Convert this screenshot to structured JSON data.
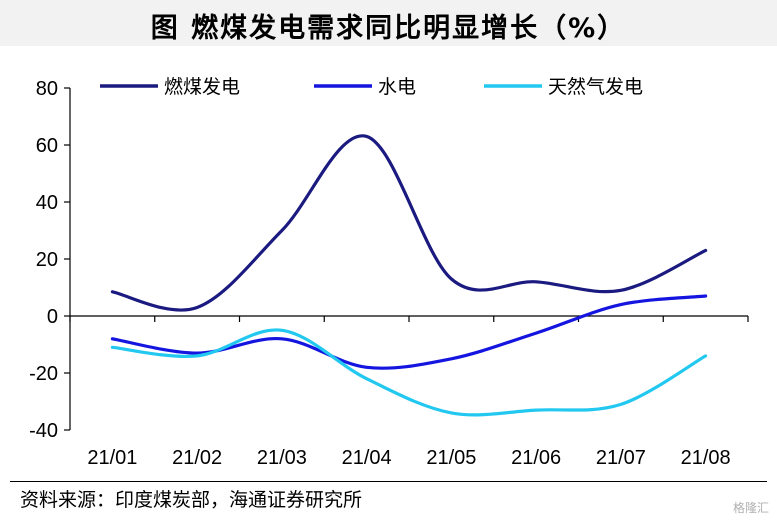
{
  "title": "图  燃煤发电需求同比明显增长（%）",
  "source": "资料来源：印度煤炭部，海通证券研究所",
  "watermark": "格隆汇",
  "chart_data": {
    "type": "line",
    "x": [
      "21/01",
      "21/02",
      "21/03",
      "21/04",
      "21/05",
      "21/06",
      "21/07",
      "21/08"
    ],
    "ylim": [
      -40,
      80
    ],
    "yticks": [
      -40,
      -20,
      0,
      20,
      40,
      60,
      80
    ],
    "grid": false,
    "legend_position": "top",
    "series": [
      {
        "name": "燃煤发电",
        "color": "#1a1a80",
        "values": [
          8.5,
          3,
          30,
          63,
          13,
          12,
          9,
          23
        ]
      },
      {
        "name": "水电",
        "color": "#1515e0",
        "values": [
          -8,
          -13,
          -8,
          -18,
          -15,
          -6,
          4,
          7
        ]
      },
      {
        "name": "天然气发电",
        "color": "#22c8f0",
        "values": [
          -11,
          -14,
          -5,
          -22,
          -34,
          -33,
          -31,
          -14
        ]
      }
    ]
  }
}
